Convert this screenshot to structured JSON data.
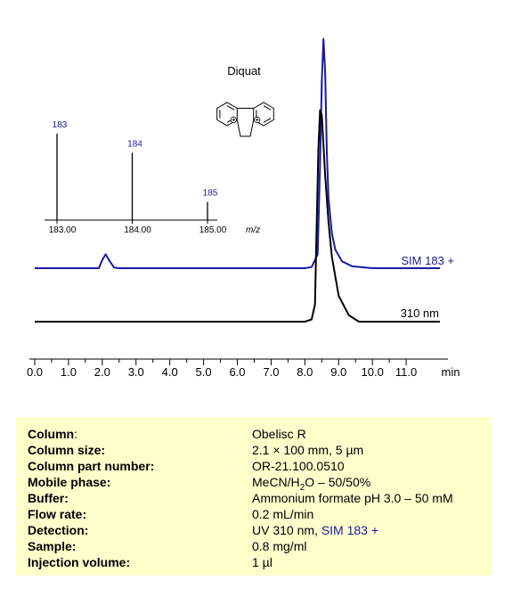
{
  "chart_data": {
    "type": "line",
    "compound": "Diquat",
    "x_unit": "min",
    "xlim": [
      0,
      12
    ],
    "x_ticks": [
      "0.0",
      "1.0",
      "2.0",
      "3.0",
      "4.0",
      "5.0",
      "6.0",
      "7.0",
      "8.0",
      "9.0",
      "10.0",
      "11.0"
    ],
    "series": [
      {
        "name": "SIM 183 +",
        "color": "#1a1aa6",
        "x": [
          0,
          1.9,
          2.0,
          2.1,
          2.2,
          2.35,
          2.5,
          8.0,
          8.2,
          8.38,
          8.45,
          8.5,
          8.55,
          8.6,
          8.65,
          8.7,
          8.8,
          8.9,
          9.1,
          9.4,
          10.0,
          12.0
        ],
        "y": [
          0.0,
          0.0,
          0.035,
          0.06,
          0.035,
          0.003,
          0.0,
          0.0,
          0.005,
          0.06,
          0.45,
          0.8,
          0.99,
          0.85,
          0.5,
          0.3,
          0.15,
          0.08,
          0.03,
          0.008,
          0.0,
          0.0
        ]
      },
      {
        "name": "310 nm",
        "color": "#000000",
        "x": [
          0,
          8.0,
          8.2,
          8.3,
          8.35,
          8.4,
          8.45,
          8.5,
          8.55,
          8.6,
          8.7,
          8.8,
          9.0,
          9.3,
          9.6,
          12.0
        ],
        "y": [
          0.0,
          0.0,
          0.01,
          0.08,
          0.45,
          0.8,
          0.98,
          0.96,
          0.82,
          0.68,
          0.46,
          0.3,
          0.12,
          0.03,
          0.0,
          0.0
        ]
      }
    ],
    "mass_spectrum": {
      "x_unit": "m/z",
      "xlim": [
        183,
        185
      ],
      "x_ticks": [
        "183.00",
        "184.00",
        "185.00"
      ],
      "peaks": [
        {
          "label": "183",
          "mz": 183.0,
          "intensity": 1.0
        },
        {
          "label": "184",
          "mz": 184.0,
          "intensity": 0.78
        },
        {
          "label": "185",
          "mz": 185.0,
          "intensity": 0.21
        }
      ]
    }
  },
  "conditions": [
    {
      "label": "Column",
      "suffix": ":",
      "value": "Obelisc R"
    },
    {
      "label": "Column size:",
      "suffix": "",
      "value": "2.1 × 100 mm, 5 µm"
    },
    {
      "label": "Column part number:",
      "suffix": "",
      "value": "OR-21.100.0510"
    },
    {
      "label": "Mobile phase:",
      "suffix": "",
      "value_pre": "MeCN/H",
      "value_sub": "2",
      "value_post": "O – 50/50%"
    },
    {
      "label": "Buffer:",
      "suffix": "",
      "value": "Ammonium formate pH 3.0 – 50 mM"
    },
    {
      "label": "Flow rate:",
      "suffix": "",
      "value": "0.2 mL/min"
    },
    {
      "label": "Detection:",
      "suffix": "",
      "value": "UV 310 nm, ",
      "value_blue": "SIM 183 +"
    },
    {
      "label": "Sample:",
      "suffix": "",
      "value": "0.8 mg/ml"
    },
    {
      "label": "Injection volume:",
      "suffix": "",
      "value": "1 µl"
    }
  ]
}
